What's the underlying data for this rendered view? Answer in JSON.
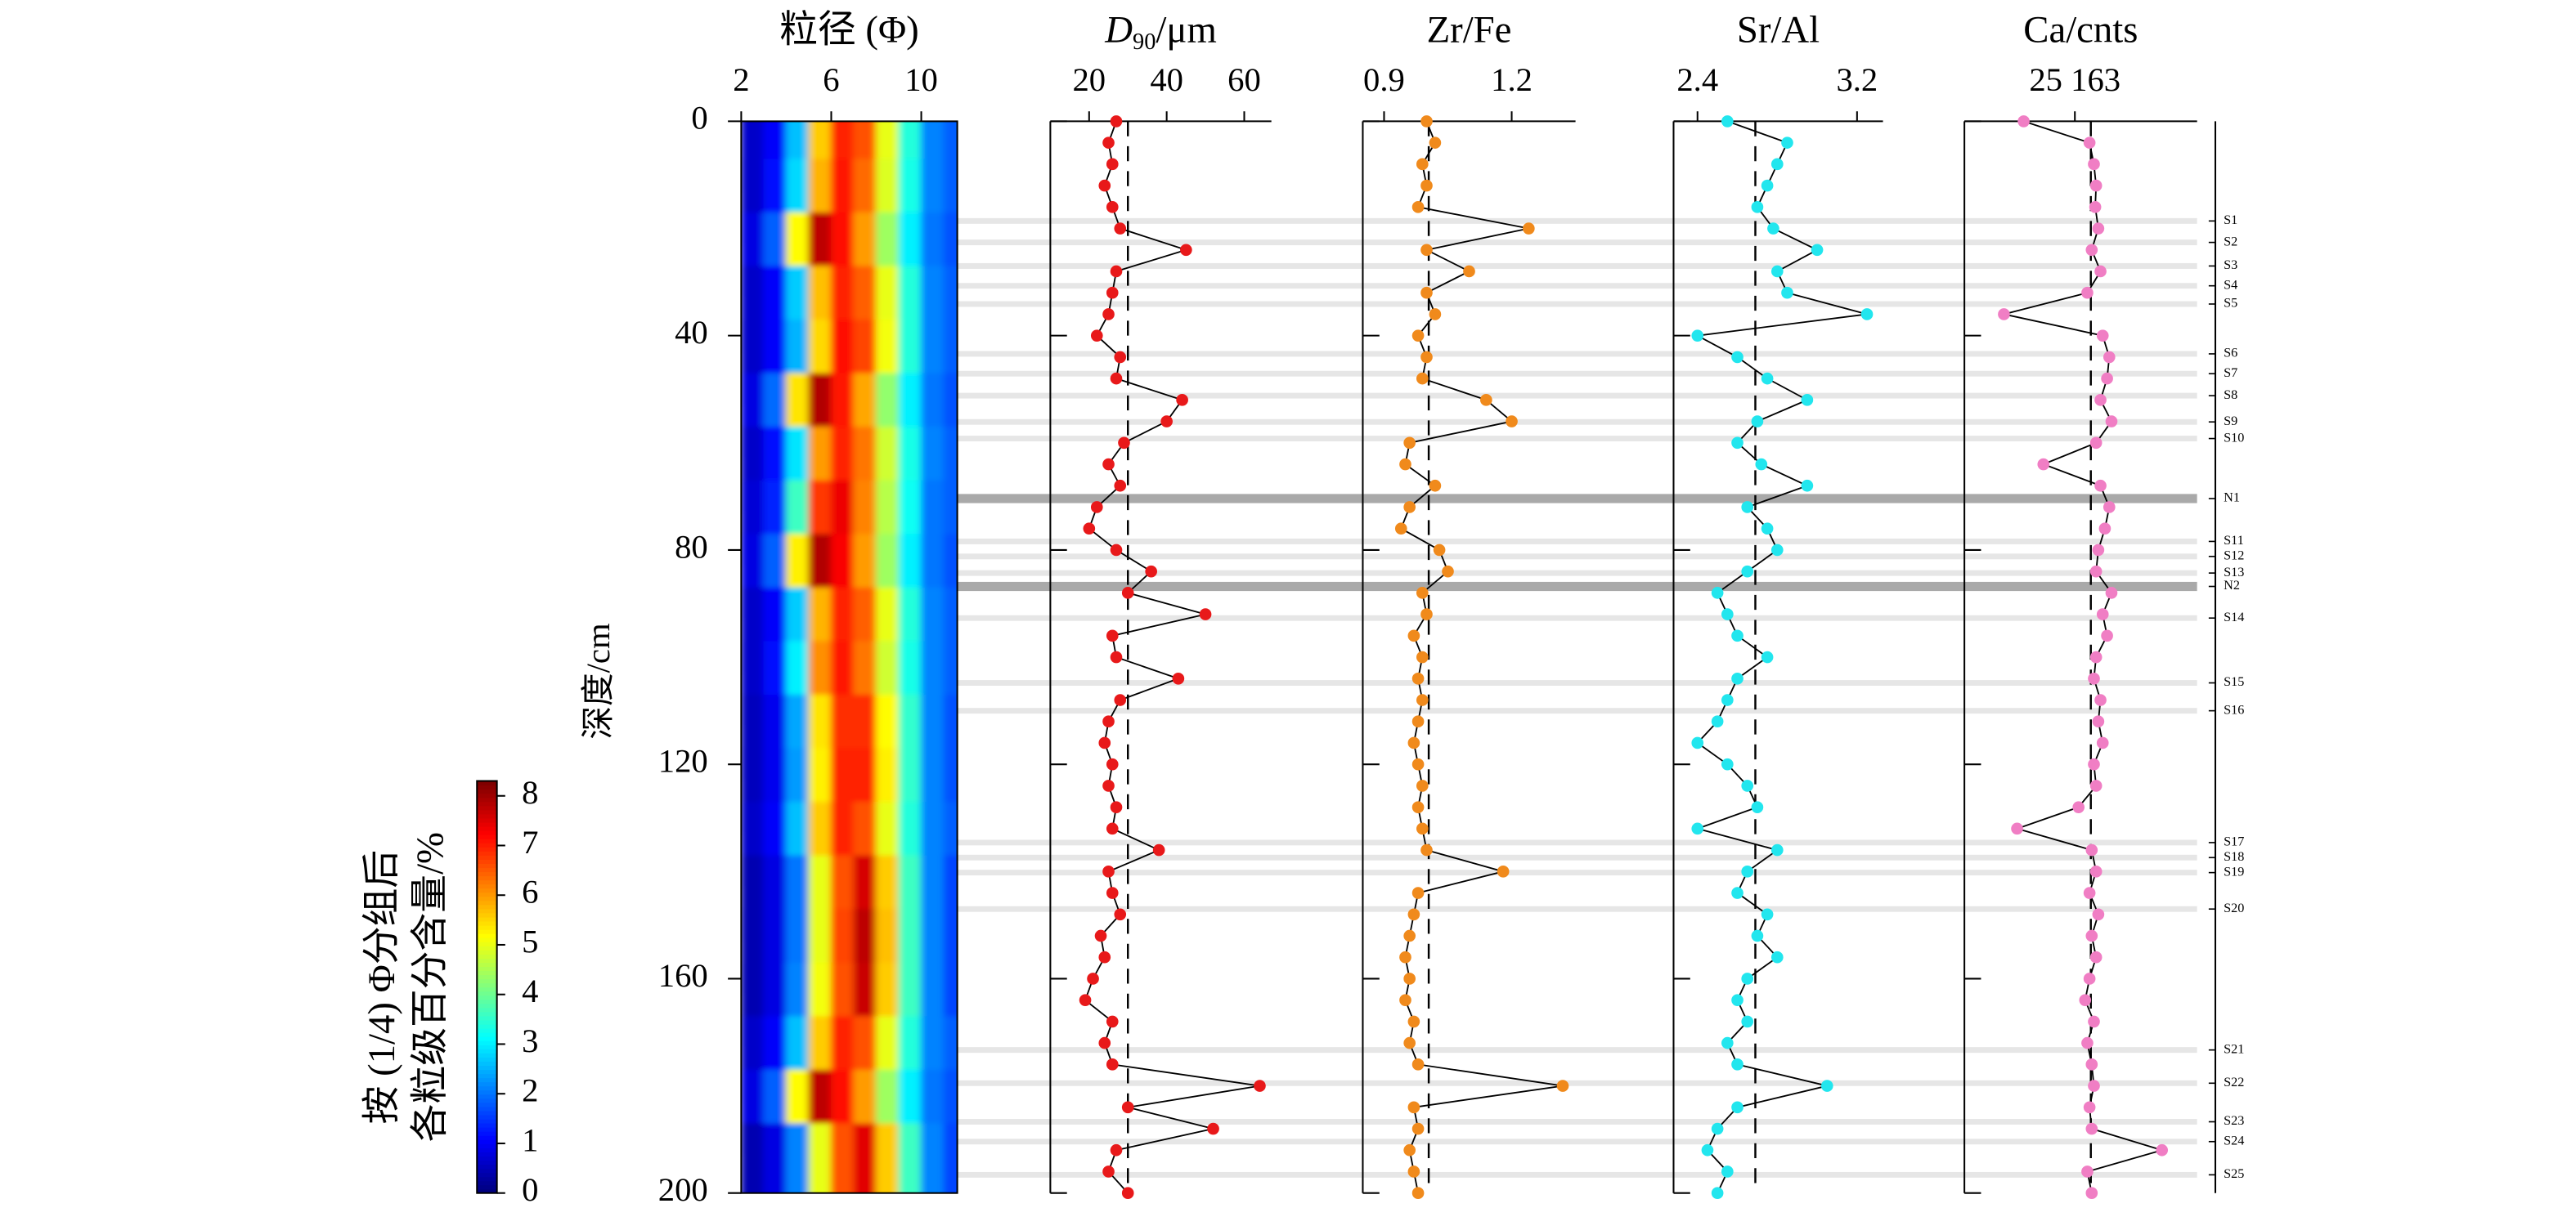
{
  "chart_data": [
    {
      "type": "heatmap",
      "title": "粒径 (Φ)",
      "ylabel": "深度/cm",
      "x": [
        2.5,
        3.5,
        4.5,
        5.5,
        6.5,
        7.5,
        8.5,
        9.5,
        10.5,
        11.5
      ],
      "y": [
        5,
        15,
        25,
        35,
        45,
        55,
        65,
        75,
        85,
        95,
        105,
        115,
        125,
        135,
        145,
        155,
        165,
        175,
        185,
        195
      ],
      "z": [
        [
          0.6,
          1.0,
          2.6,
          5.6,
          7.0,
          6.6,
          5.0,
          3.4,
          2.1,
          1.8
        ],
        [
          0.6,
          1.1,
          2.8,
          5.8,
          7.1,
          6.4,
          4.9,
          3.3,
          2.1,
          1.8
        ],
        [
          0.8,
          1.8,
          5.2,
          7.8,
          7.2,
          6.0,
          4.4,
          3.0,
          2.0,
          1.7
        ],
        [
          0.6,
          1.0,
          2.7,
          5.7,
          7.0,
          6.5,
          5.0,
          3.4,
          2.1,
          1.8
        ],
        [
          0.6,
          1.0,
          2.5,
          5.5,
          7.2,
          6.7,
          5.1,
          3.4,
          2.1,
          1.8
        ],
        [
          0.8,
          1.9,
          5.4,
          7.9,
          7.1,
          5.9,
          4.3,
          3.0,
          2.0,
          1.7
        ],
        [
          0.6,
          1.1,
          2.9,
          6.0,
          7.0,
          6.3,
          4.8,
          3.3,
          2.1,
          1.8
        ],
        [
          0.7,
          1.3,
          3.6,
          6.8,
          7.4,
          6.2,
          4.6,
          3.2,
          2.0,
          1.8
        ],
        [
          0.8,
          1.8,
          5.3,
          7.9,
          7.3,
          6.0,
          4.4,
          3.0,
          2.0,
          1.7
        ],
        [
          0.6,
          1.0,
          2.7,
          5.8,
          7.0,
          6.5,
          5.0,
          3.4,
          2.1,
          1.8
        ],
        [
          0.6,
          1.1,
          3.0,
          6.1,
          7.1,
          6.3,
          4.8,
          3.3,
          2.1,
          1.8
        ],
        [
          0.5,
          0.9,
          2.4,
          5.4,
          6.9,
          6.9,
          5.2,
          3.5,
          2.1,
          1.7
        ],
        [
          0.5,
          0.9,
          2.3,
          5.3,
          7.0,
          7.0,
          5.3,
          3.5,
          2.1,
          1.7
        ],
        [
          0.6,
          1.0,
          2.6,
          5.6,
          7.0,
          6.6,
          5.0,
          3.4,
          2.1,
          1.8
        ],
        [
          0.4,
          0.8,
          2.0,
          5.0,
          6.6,
          7.6,
          5.6,
          3.6,
          2.1,
          1.6
        ],
        [
          0.4,
          0.8,
          2.0,
          5.0,
          6.7,
          7.8,
          5.7,
          3.6,
          2.1,
          1.6
        ],
        [
          0.4,
          0.8,
          2.1,
          5.1,
          6.6,
          7.7,
          5.6,
          3.6,
          2.1,
          1.6
        ],
        [
          0.6,
          1.0,
          2.6,
          5.6,
          7.0,
          6.6,
          5.0,
          3.4,
          2.1,
          1.8
        ],
        [
          0.8,
          1.8,
          5.2,
          7.8,
          7.2,
          6.0,
          4.4,
          3.0,
          2.0,
          1.7
        ],
        [
          0.4,
          0.8,
          2.1,
          5.0,
          6.6,
          7.5,
          5.6,
          3.6,
          2.1,
          1.6
        ]
      ],
      "xlim": [
        2,
        11.6
      ],
      "xticks": [
        2,
        6,
        10
      ],
      "ylim": [
        0,
        200
      ],
      "yticks": [
        0,
        40,
        80,
        120,
        160,
        200
      ],
      "colorbar": {
        "label": [
          "按 (1/4) Φ分组后",
          "各粒级百分含量/%"
        ],
        "zlim": [
          0,
          8.3
        ],
        "zticks": [
          0,
          1,
          2,
          3,
          4,
          5,
          6,
          7,
          8
        ],
        "colormap": "jet"
      }
    },
    {
      "type": "line",
      "title": {
        "main": "D",
        "subscript": "90",
        "unit": "/μm"
      },
      "color": "#e8191a",
      "line_color": "#000000",
      "reference": 30,
      "xlim": [
        10,
        67
      ],
      "xticks": [
        20,
        40,
        60
      ],
      "depths": [
        0,
        4,
        8,
        12,
        16,
        20,
        24,
        28,
        32,
        36,
        40,
        44,
        48,
        52,
        56,
        60,
        64,
        68,
        72,
        76,
        80,
        84,
        88,
        92,
        96,
        100,
        104,
        108,
        112,
        116,
        120,
        124,
        128,
        132,
        136,
        140,
        144,
        148,
        152,
        156,
        160,
        164,
        168,
        172,
        176,
        180,
        184,
        188,
        192,
        196,
        200
      ],
      "values": [
        27,
        25,
        26,
        24,
        26,
        28,
        45,
        27,
        26,
        25,
        22,
        28,
        27,
        44,
        40,
        29,
        25,
        28,
        22,
        20,
        27,
        36,
        30,
        50,
        26,
        27,
        43,
        28,
        25,
        24,
        26,
        25,
        27,
        26,
        38,
        25,
        26,
        28,
        23,
        24,
        21,
        19,
        26,
        24,
        26,
        64,
        30,
        52,
        27,
        25,
        30
      ]
    },
    {
      "type": "line",
      "title": "Zr/Fe",
      "color": "#f08a1c",
      "line_color": "#000000",
      "reference": 1.005,
      "xlim": [
        0.85,
        1.35
      ],
      "xticks": [
        0.9,
        1.2
      ],
      "depths": [
        0,
        4,
        8,
        12,
        16,
        20,
        24,
        28,
        32,
        36,
        40,
        44,
        48,
        52,
        56,
        60,
        64,
        68,
        72,
        76,
        80,
        84,
        88,
        92,
        96,
        100,
        104,
        108,
        112,
        116,
        120,
        124,
        128,
        132,
        136,
        140,
        144,
        148,
        152,
        156,
        160,
        164,
        168,
        172,
        176,
        180,
        184,
        188,
        192,
        196,
        200
      ],
      "values": [
        1.0,
        1.02,
        0.99,
        1.0,
        0.98,
        1.24,
        1.0,
        1.1,
        1.0,
        1.02,
        0.98,
        1.0,
        0.99,
        1.14,
        1.2,
        0.96,
        0.95,
        1.02,
        0.96,
        0.94,
        1.03,
        1.05,
        0.99,
        1.0,
        0.97,
        0.99,
        0.98,
        0.99,
        0.98,
        0.97,
        0.98,
        0.99,
        0.98,
        0.99,
        1.0,
        1.18,
        0.98,
        0.97,
        0.96,
        0.95,
        0.96,
        0.95,
        0.97,
        0.96,
        0.98,
        1.32,
        0.97,
        0.98,
        0.96,
        0.97,
        0.98
      ]
    },
    {
      "type": "line",
      "title": "Sr/Al",
      "color": "#22e6ee",
      "line_color": "#000000",
      "reference": 2.69,
      "xlim": [
        2.28,
        3.33
      ],
      "xticks": [
        2.4,
        3.2
      ],
      "depths": [
        0,
        4,
        8,
        12,
        16,
        20,
        24,
        28,
        32,
        36,
        40,
        44,
        48,
        52,
        56,
        60,
        64,
        68,
        72,
        76,
        80,
        84,
        88,
        92,
        96,
        100,
        104,
        108,
        112,
        116,
        120,
        124,
        128,
        132,
        136,
        140,
        144,
        148,
        152,
        156,
        160,
        164,
        168,
        172,
        176,
        180,
        184,
        188,
        192,
        196,
        200
      ],
      "values": [
        2.55,
        2.85,
        2.8,
        2.75,
        2.7,
        2.78,
        3.0,
        2.8,
        2.85,
        3.25,
        2.4,
        2.6,
        2.75,
        2.95,
        2.7,
        2.6,
        2.72,
        2.95,
        2.65,
        2.75,
        2.8,
        2.65,
        2.5,
        2.55,
        2.6,
        2.75,
        2.6,
        2.55,
        2.5,
        2.4,
        2.55,
        2.65,
        2.7,
        2.4,
        2.8,
        2.65,
        2.6,
        2.75,
        2.7,
        2.8,
        2.65,
        2.6,
        2.65,
        2.55,
        2.6,
        3.05,
        2.6,
        2.5,
        2.45,
        2.55,
        2.5
      ]
    },
    {
      "type": "line",
      "title": "Ca/cnts",
      "color": "#f07ec4",
      "line_color": "#000000",
      "reference": 28800,
      "xlim": [
        0,
        53000
      ],
      "xticks": [
        {
          "value": 25163,
          "label": "25 163"
        }
      ],
      "depths": [
        0,
        4,
        8,
        12,
        16,
        20,
        24,
        28,
        32,
        36,
        40,
        44,
        48,
        52,
        56,
        60,
        64,
        68,
        72,
        76,
        80,
        84,
        88,
        92,
        96,
        100,
        104,
        108,
        112,
        116,
        120,
        124,
        128,
        132,
        136,
        140,
        144,
        148,
        152,
        156,
        160,
        164,
        168,
        172,
        176,
        180,
        184,
        188,
        192,
        196,
        200
      ],
      "values": [
        13500,
        28500,
        29500,
        30000,
        29800,
        30500,
        29000,
        31000,
        28000,
        9000,
        31500,
        33000,
        32500,
        31000,
        33500,
        30000,
        18000,
        31000,
        33000,
        32000,
        30500,
        30000,
        33500,
        31500,
        32500,
        30000,
        29500,
        31000,
        30500,
        31500,
        29500,
        30000,
        26000,
        12000,
        29000,
        30000,
        28500,
        30500,
        29000,
        30000,
        28500,
        27500,
        29500,
        28000,
        29000,
        29500,
        28500,
        29000,
        45000,
        28000,
        29000
      ]
    }
  ],
  "layers": {
    "color": "#e6e6e6",
    "label_color": "#000000",
    "items": [
      {
        "label": "S1",
        "depth": 18.6
      },
      {
        "label": "S2",
        "depth": 22.6
      },
      {
        "label": "S3",
        "depth": 27
      },
      {
        "label": "S4",
        "depth": 30.7
      },
      {
        "label": "S5",
        "depth": 34.1
      },
      {
        "label": "S6",
        "depth": 43.4
      },
      {
        "label": "S7",
        "depth": 47.1
      },
      {
        "label": "S8",
        "depth": 51.2
      },
      {
        "label": "S9",
        "depth": 56.1
      },
      {
        "label": "S10",
        "depth": 59.2
      },
      {
        "label": "S11",
        "depth": 78.4
      },
      {
        "label": "S12",
        "depth": 81.2
      },
      {
        "label": "S13",
        "depth": 84.3
      },
      {
        "label": "S14",
        "depth": 92.7
      },
      {
        "label": "S15",
        "depth": 104.8
      },
      {
        "label": "S16",
        "depth": 110
      },
      {
        "label": "S17",
        "depth": 134.6
      },
      {
        "label": "S18",
        "depth": 137.4
      },
      {
        "label": "S19",
        "depth": 140.2
      },
      {
        "label": "S20",
        "depth": 147
      },
      {
        "label": "S21",
        "depth": 173.3
      },
      {
        "label": "S22",
        "depth": 179.5
      },
      {
        "label": "S23",
        "depth": 186.7
      },
      {
        "label": "S24",
        "depth": 190.4
      },
      {
        "label": "S25",
        "depth": 196.6
      }
    ]
  },
  "highlight_layers": {
    "color": "#a9a9a9",
    "label_color": "#d8262a",
    "items": [
      {
        "label": "N1",
        "depth": 70.4
      },
      {
        "label": "N2",
        "depth": 86.8
      }
    ]
  }
}
